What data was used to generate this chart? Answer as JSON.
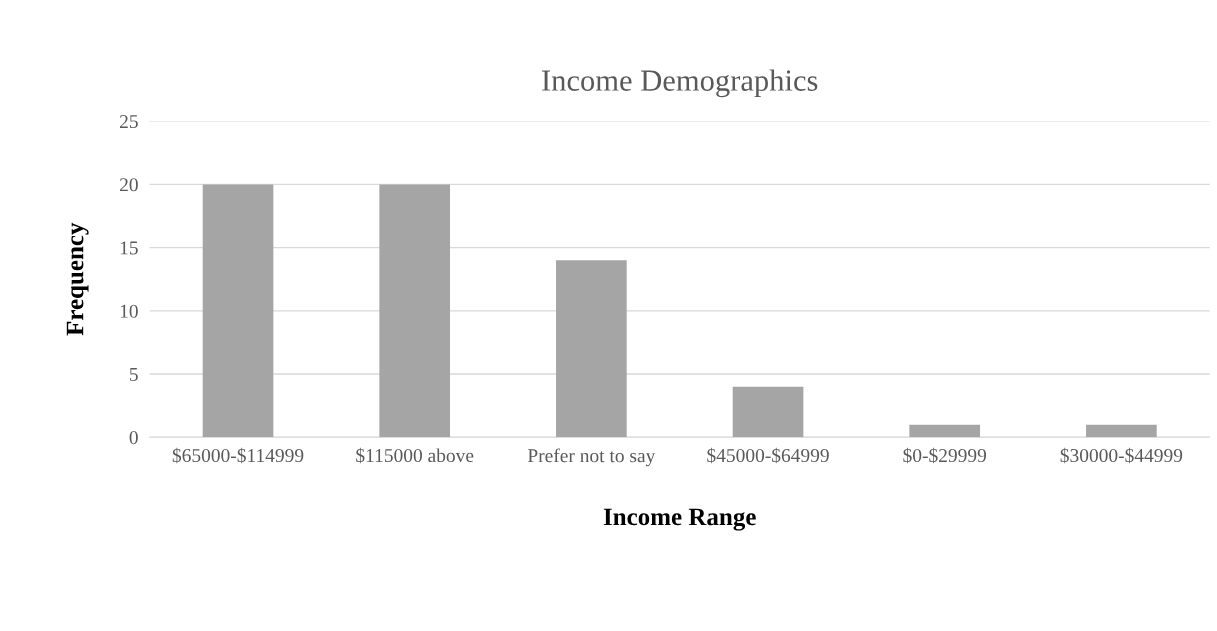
{
  "chart_data": {
    "type": "bar",
    "title": "Income Demographics",
    "xlabel": "Income Range",
    "ylabel": "Frequency",
    "categories": [
      "$65000-$114999",
      "$115000 above",
      "Prefer not to say",
      "$45000-$64999",
      "$0-$29999",
      "$30000-$44999"
    ],
    "values": [
      20,
      20,
      14,
      4,
      1,
      1
    ],
    "color": "#a5a5a5",
    "ylim": [
      0,
      25
    ],
    "yticks": [
      0,
      5,
      10,
      15,
      20,
      25
    ],
    "grid": "y"
  }
}
